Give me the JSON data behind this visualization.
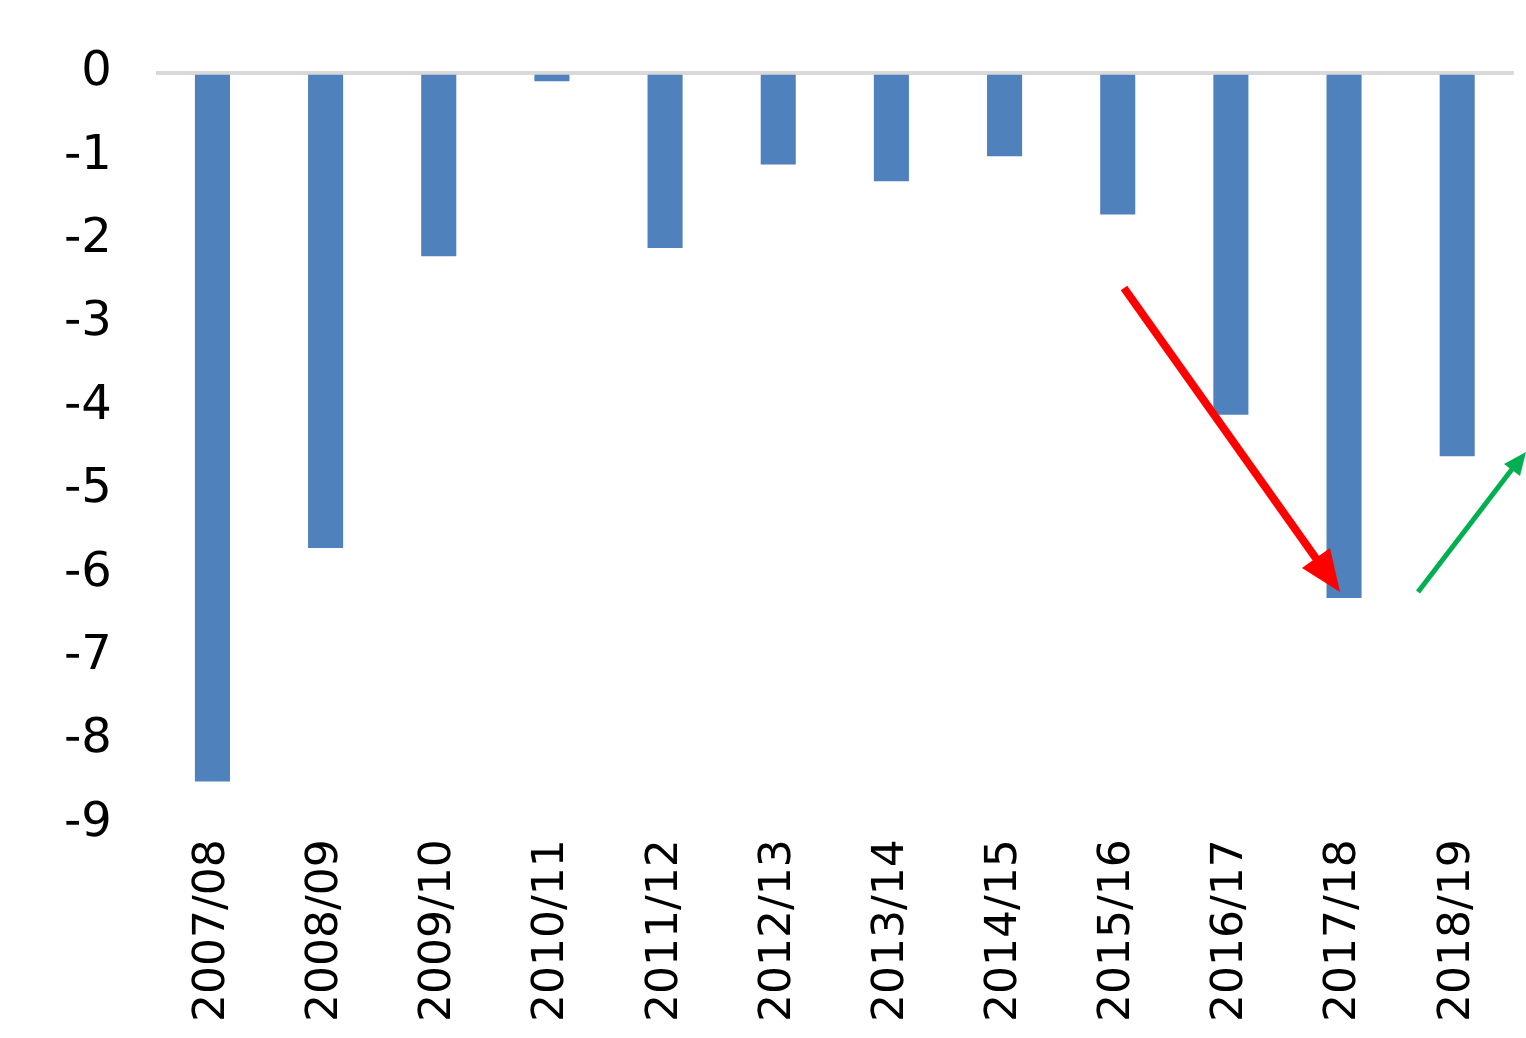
{
  "chart_data": {
    "type": "bar",
    "categories": [
      "2007/08",
      "2008/09",
      "2009/10",
      "2010/11",
      "2011/12",
      "2012/13",
      "2013/14",
      "2014/15",
      "2015/16",
      "2016/17",
      "2017/18",
      "2018/19"
    ],
    "values": [
      -8.5,
      -5.7,
      -2.2,
      -0.1,
      -2.1,
      -1.1,
      -1.3,
      -1.0,
      -1.7,
      -4.1,
      -6.3,
      -4.6
    ],
    "color": "#4f81bd",
    "ylim": [
      -9,
      0
    ],
    "yticks": [
      -9,
      -8,
      -7,
      -6,
      -5,
      -4,
      -3,
      -2,
      -1,
      0
    ],
    "grid": false,
    "legend": false
  }
}
